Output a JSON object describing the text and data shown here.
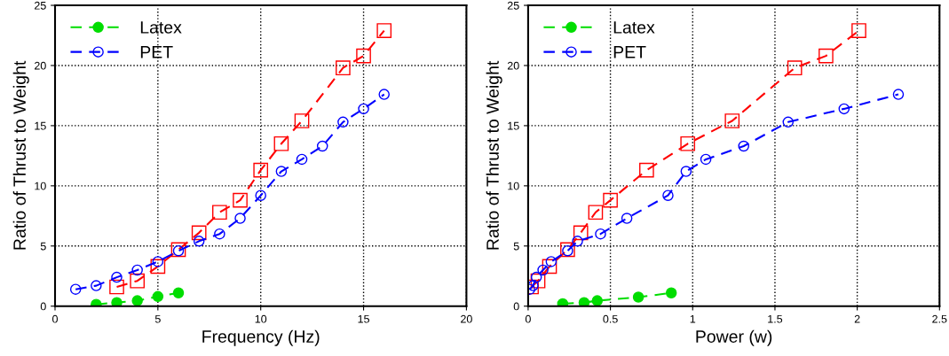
{
  "chart_data": [
    {
      "type": "line",
      "xlabel": "Frequency (Hz)",
      "ylabel": "Ratio of Thrust to Weight",
      "xlim": [
        0,
        20
      ],
      "xticks": [
        0,
        5,
        10,
        15,
        20
      ],
      "ylim": [
        0,
        25
      ],
      "yticks": [
        0,
        5,
        10,
        15,
        20,
        25
      ],
      "grid": true,
      "legend": "top left",
      "series": [
        {
          "name": "Latex",
          "color": "#00dd00",
          "marker": "circle",
          "line_style": "dashed",
          "x": [
            2,
            3,
            4,
            5,
            6
          ],
          "values": [
            0.15,
            0.3,
            0.45,
            0.8,
            1.1
          ]
        },
        {
          "color": "#ff0000",
          "marker": "square",
          "line_style": "dashed",
          "x": [
            3,
            4,
            5,
            6,
            7,
            8,
            9,
            10,
            11,
            12,
            14,
            15,
            16
          ],
          "values": [
            1.6,
            2.1,
            3.3,
            4.7,
            6.1,
            7.8,
            8.8,
            11.3,
            13.5,
            15.4,
            19.8,
            20.8,
            22.9
          ]
        },
        {
          "name": "PET",
          "color": "#0000ff",
          "marker": "circle",
          "line_style": "dashed",
          "x": [
            1,
            2,
            3,
            4,
            5,
            6,
            7,
            8,
            9,
            10,
            11,
            12,
            13,
            14,
            15,
            16
          ],
          "values": [
            1.4,
            1.7,
            2.4,
            3.0,
            3.7,
            4.6,
            5.4,
            6.0,
            7.3,
            9.2,
            11.2,
            12.2,
            13.3,
            15.3,
            16.4,
            17.6
          ]
        }
      ]
    },
    {
      "type": "line",
      "xlabel": "Power (w)",
      "ylabel": "Ratio of Thrust to Weight",
      "xlim": [
        0,
        2.5
      ],
      "xticks": [
        0,
        0.5,
        1,
        1.5,
        2,
        2.5
      ],
      "ylim": [
        0,
        25
      ],
      "yticks": [
        0,
        5,
        10,
        15,
        20,
        25
      ],
      "grid": true,
      "legend": "top left",
      "series": [
        {
          "name": "Latex",
          "color": "#00dd00",
          "marker": "circle",
          "line_style": "dashed",
          "x": [
            0.21,
            0.34,
            0.42,
            0.67,
            0.87
          ],
          "values": [
            0.2,
            0.3,
            0.45,
            0.75,
            1.1
          ]
        },
        {
          "color": "#ff0000",
          "marker": "square",
          "line_style": "dashed",
          "x": [
            0.02,
            0.06,
            0.13,
            0.24,
            0.32,
            0.41,
            0.5,
            0.72,
            0.97,
            1.24,
            1.62,
            1.81,
            2.01
          ],
          "values": [
            1.6,
            2.1,
            3.3,
            4.7,
            6.1,
            7.8,
            8.8,
            11.3,
            13.5,
            15.4,
            19.8,
            20.8,
            22.9
          ]
        },
        {
          "name": "PET",
          "color": "#0000ff",
          "marker": "circle",
          "line_style": "dashed",
          "x": [
            0.01,
            0.03,
            0.05,
            0.09,
            0.14,
            0.24,
            0.3,
            0.44,
            0.6,
            0.85,
            0.96,
            1.08,
            1.31,
            1.58,
            1.92,
            2.25
          ],
          "values": [
            1.4,
            1.7,
            2.4,
            3.0,
            3.7,
            4.6,
            5.4,
            6.0,
            7.3,
            9.2,
            11.2,
            12.2,
            13.3,
            15.3,
            16.4,
            17.6
          ]
        }
      ]
    }
  ]
}
